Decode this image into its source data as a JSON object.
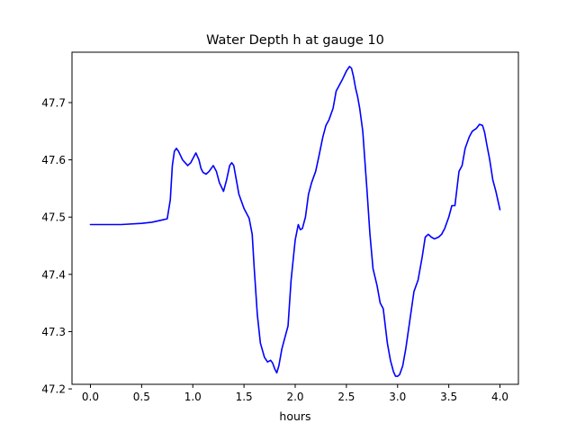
{
  "chart_data": {
    "type": "line",
    "title": "Water Depth h at gauge 10",
    "xlabel": "hours",
    "ylabel": "",
    "xlim": [
      -0.18,
      4.18
    ],
    "ylim": [
      47.208,
      47.788
    ],
    "xticks": [
      0.0,
      0.5,
      1.0,
      1.5,
      2.0,
      2.5,
      3.0,
      3.5,
      4.0
    ],
    "xtick_labels": [
      "0.0",
      "0.5",
      "1.0",
      "1.5",
      "2.0",
      "2.5",
      "3.0",
      "3.5",
      "4.0"
    ],
    "yticks": [
      47.2,
      47.3,
      47.4,
      47.5,
      47.6,
      47.7
    ],
    "ytick_labels": [
      "47.2",
      "47.3",
      "47.4",
      "47.5",
      "47.6",
      "47.7"
    ],
    "grid": false,
    "series": [
      {
        "color": "#0000ff",
        "x": [
          0.0,
          0.3,
          0.5,
          0.6,
          0.7,
          0.75,
          0.78,
          0.8,
          0.82,
          0.84,
          0.86,
          0.9,
          0.95,
          0.98,
          1.0,
          1.03,
          1.06,
          1.08,
          1.1,
          1.13,
          1.16,
          1.2,
          1.23,
          1.26,
          1.3,
          1.33,
          1.36,
          1.38,
          1.4,
          1.42,
          1.45,
          1.5,
          1.55,
          1.58,
          1.6,
          1.63,
          1.66,
          1.7,
          1.73,
          1.76,
          1.78,
          1.8,
          1.82,
          1.84,
          1.87,
          1.9,
          1.93,
          1.96,
          2.0,
          2.03,
          2.05,
          2.07,
          2.1,
          2.13,
          2.16,
          2.2,
          2.23,
          2.27,
          2.3,
          2.33,
          2.37,
          2.4,
          2.43,
          2.46,
          2.5,
          2.53,
          2.55,
          2.57,
          2.59,
          2.61,
          2.63,
          2.66,
          2.7,
          2.73,
          2.76,
          2.8,
          2.83,
          2.86,
          2.88,
          2.9,
          2.93,
          2.96,
          2.98,
          3.0,
          3.02,
          3.05,
          3.08,
          3.12,
          3.16,
          3.2,
          3.24,
          3.27,
          3.3,
          3.33,
          3.36,
          3.4,
          3.43,
          3.46,
          3.5,
          3.53,
          3.56,
          3.58,
          3.6,
          3.63,
          3.66,
          3.7,
          3.73,
          3.77,
          3.8,
          3.83,
          3.85,
          3.87,
          3.9,
          3.93,
          3.96,
          4.0
        ],
        "y": [
          47.487,
          47.487,
          47.489,
          47.491,
          47.495,
          47.497,
          47.53,
          47.59,
          47.615,
          47.62,
          47.615,
          47.6,
          47.59,
          47.595,
          47.602,
          47.612,
          47.6,
          47.585,
          47.578,
          47.575,
          47.58,
          47.59,
          47.58,
          47.56,
          47.545,
          47.565,
          47.59,
          47.595,
          47.59,
          47.57,
          47.54,
          47.515,
          47.498,
          47.47,
          47.41,
          47.33,
          47.28,
          47.255,
          47.247,
          47.25,
          47.245,
          47.235,
          47.228,
          47.24,
          47.27,
          47.29,
          47.31,
          47.39,
          47.46,
          47.487,
          47.478,
          47.48,
          47.5,
          47.54,
          47.56,
          47.58,
          47.605,
          47.64,
          47.66,
          47.67,
          47.69,
          47.72,
          47.73,
          47.74,
          47.755,
          47.763,
          47.76,
          47.745,
          47.725,
          47.71,
          47.69,
          47.65,
          47.55,
          47.47,
          47.41,
          47.38,
          47.35,
          47.34,
          47.31,
          47.28,
          47.25,
          47.23,
          47.222,
          47.222,
          47.225,
          47.24,
          47.27,
          47.32,
          47.37,
          47.39,
          47.43,
          47.465,
          47.47,
          47.465,
          47.462,
          47.465,
          47.47,
          47.48,
          47.5,
          47.52,
          47.52,
          47.55,
          47.58,
          47.59,
          47.62,
          47.64,
          47.65,
          47.655,
          47.662,
          47.66,
          47.648,
          47.628,
          47.6,
          47.565,
          47.545,
          47.513
        ]
      }
    ]
  }
}
